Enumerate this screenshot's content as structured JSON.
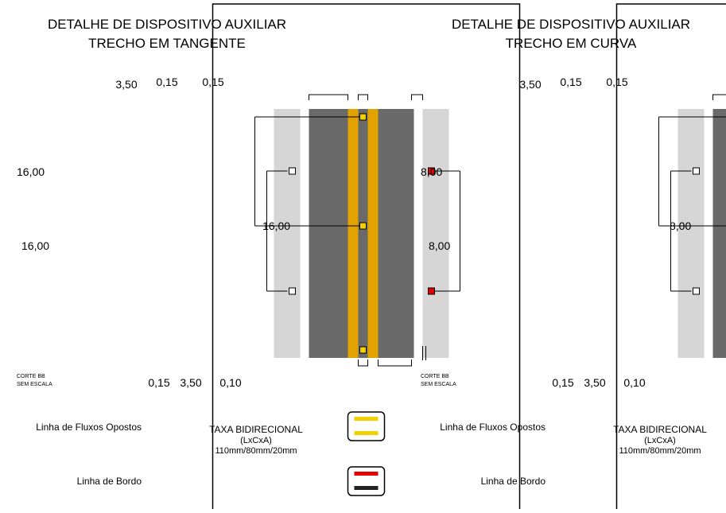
{
  "colors": {
    "shoulder": "#d6d6d6",
    "lane": "#6a6a6a",
    "yellow_line": "#e2a300",
    "marker_yellow": "#f3d000",
    "marker_red": "#e60000",
    "frame": "#000000"
  },
  "panels": [
    {
      "title_line1": "DETALHE DE DISPOSITIVO AUXILIAR",
      "title_line2": "TRECHO EM TANGENTE",
      "dim_top_lane": "3,50",
      "dim_top_line": "0,15",
      "dim_top_edge": "0,15",
      "dim_left_upper": "16,00",
      "dim_left_lower": "16,00",
      "dim_right": "16,00",
      "dim_bottom_line": "0,15",
      "dim_bottom_lane": "3,50",
      "dim_bottom_edge": "0,10",
      "section_label": "CORTE BB",
      "scale_label": "SEM  ESCALA",
      "legend_opposing": "Linha de Fluxos Opostos",
      "legend_edge": "Linha de Bordo",
      "tacha_title": "TAXA BIDIRECIONAL",
      "tacha_dims": "(LxCxA)",
      "tacha_size": "110mm/80mm/20mm"
    },
    {
      "title_line1": "DETALHE DE DISPOSITIVO AUXILIAR",
      "title_line2": "TRECHO EM CURVA",
      "dim_top_lane": "3,50",
      "dim_top_line": "0,15",
      "dim_top_edge": "0,15",
      "dim_left_upper": "8,00",
      "dim_left_lower": "8,00",
      "dim_right": "8,00",
      "dim_bottom_line": "0,15",
      "dim_bottom_lane": "3,50",
      "dim_bottom_edge": "0,10",
      "section_label": "CORTE BB",
      "scale_label": "SEM  ESCALA",
      "legend_opposing": "Linha de Fluxos Opostos",
      "legend_edge": "Linha de Bordo",
      "tacha_title": "TAXA BIDIRECIONAL",
      "tacha_dims": "(LxCxA)",
      "tacha_size": "110mm/80mm/20mm"
    }
  ]
}
